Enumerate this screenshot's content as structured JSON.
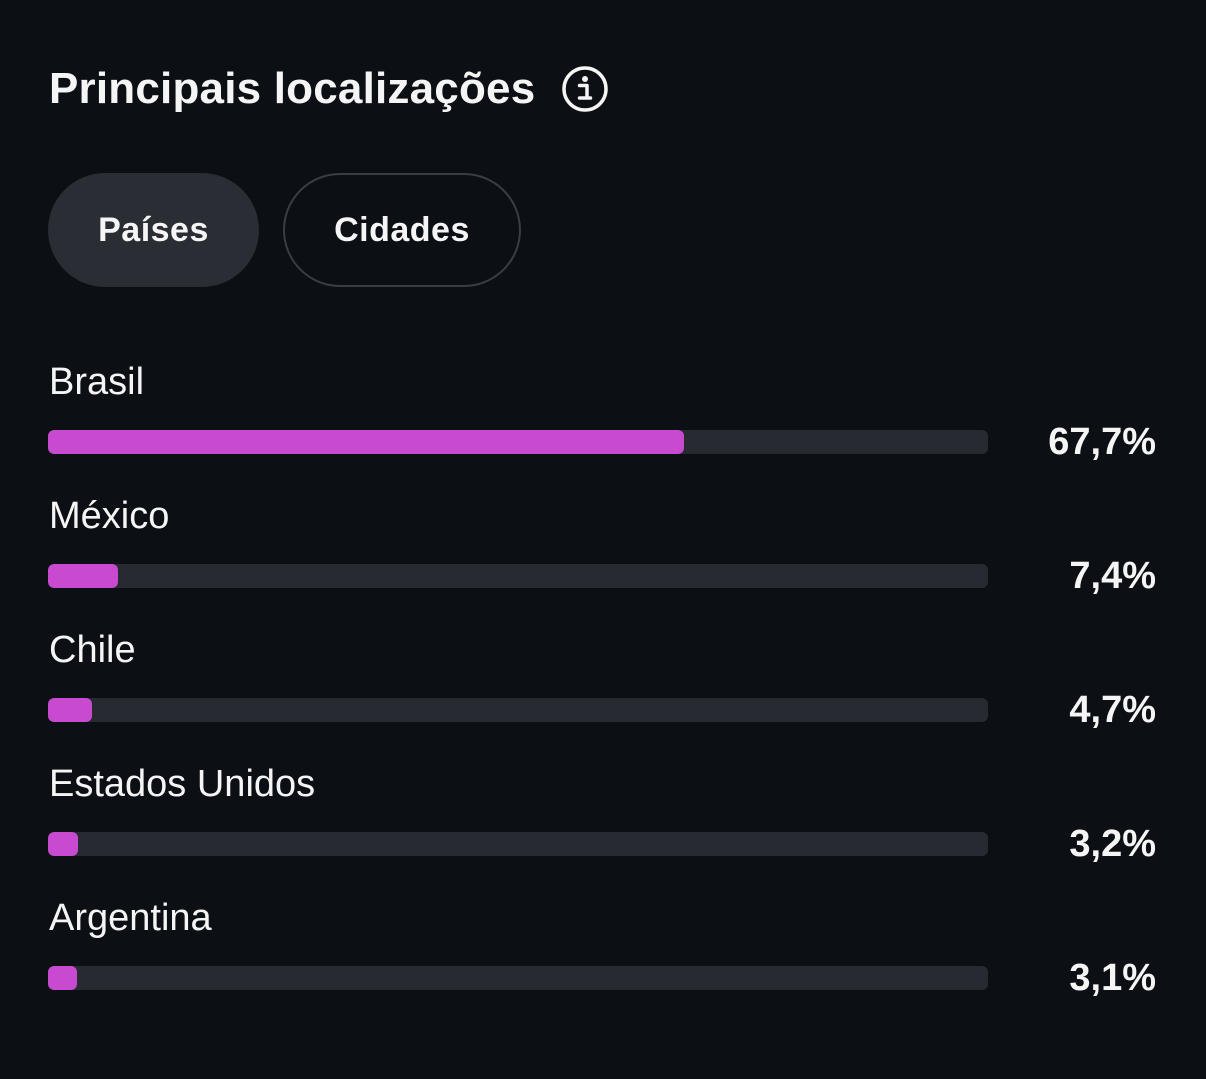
{
  "header": {
    "title": "Principais localizações",
    "info_icon": "info-circle-icon"
  },
  "tabs": [
    {
      "label": "Países",
      "selected": true
    },
    {
      "label": "Cidades",
      "selected": false
    }
  ],
  "colors": {
    "background": "#0c0f14",
    "bar_fill": "#c84ad0",
    "bar_track": "#272a30",
    "active_tab": "#2a2d33"
  },
  "locations": [
    {
      "name": "Brasil",
      "percent_label": "67,7%",
      "fill_fraction": 0.677
    },
    {
      "name": "México",
      "percent_label": "7,4%",
      "fill_fraction": 0.074
    },
    {
      "name": "Chile",
      "percent_label": "4,7%",
      "fill_fraction": 0.047
    },
    {
      "name": "Estados Unidos",
      "percent_label": "3,2%",
      "fill_fraction": 0.032
    },
    {
      "name": "Argentina",
      "percent_label": "3,1%",
      "fill_fraction": 0.031
    }
  ]
}
